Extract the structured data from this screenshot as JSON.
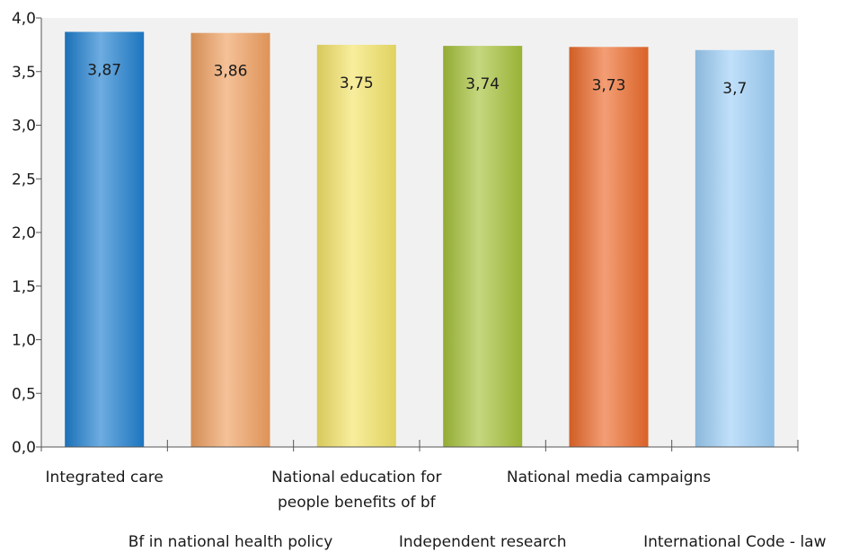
{
  "chart_data": {
    "type": "bar",
    "title": "",
    "xlabel": "",
    "ylabel": "",
    "ylim": [
      0,
      4
    ],
    "yticks": [
      "0,0",
      "0,5",
      "1,0",
      "1,5",
      "2,0",
      "2,5",
      "3,0",
      "3,5",
      "4,0"
    ],
    "grid": false,
    "categories": [
      "Integrated care",
      "Bf in national health policy",
      "National education for people benefits of bf",
      "Independent research",
      "National media campaigns",
      "International Code - law"
    ],
    "category_label_lines": [
      [
        "Integrated care"
      ],
      [
        "Bf in national health policy"
      ],
      [
        "National education for",
        "people benefits of bf"
      ],
      [
        "Independent research"
      ],
      [
        "National media campaigns"
      ],
      [
        "International Code - law"
      ]
    ],
    "values": [
      3.87,
      3.86,
      3.75,
      3.74,
      3.73,
      3.7
    ],
    "data_labels": [
      "3,87",
      "3,86",
      "3,75",
      "3,74",
      "3,73",
      "3,7"
    ],
    "colors": [
      "#1f7fd0",
      "#f0a060",
      "#f4e468",
      "#a6c23a",
      "#ec6a2a",
      "#9ed0f8"
    ],
    "plot_background": "#f1f1f1"
  }
}
